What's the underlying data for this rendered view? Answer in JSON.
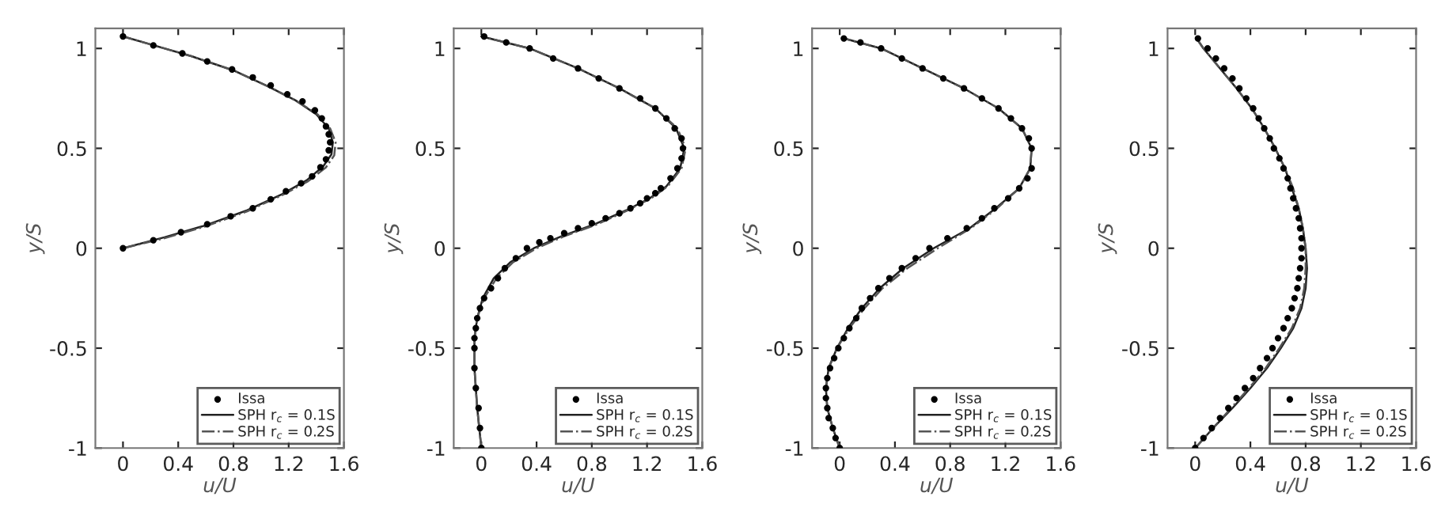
{
  "chart_data": [
    {
      "type": "line",
      "xlabel": "u/U",
      "ylabel": "y/S",
      "xlim": [
        -0.2,
        1.6
      ],
      "ylim": [
        -1,
        1.1
      ],
      "xticks": [
        0,
        0.4,
        0.8,
        1.2,
        1.6
      ],
      "yticks": [
        -1,
        -0.5,
        0,
        0.5,
        1
      ],
      "legend": "lower right",
      "grid": false,
      "series": [
        {
          "name": "Issa",
          "type": "scatter",
          "marker": "circle",
          "color": "#000000",
          "x": [
            0,
            0.22,
            0.42,
            0.61,
            0.78,
            0.94,
            1.07,
            1.18,
            1.29,
            1.37,
            1.43,
            1.47,
            1.49,
            1.5,
            1.49,
            1.47,
            1.44,
            1.39,
            1.3,
            1.19,
            1.07,
            0.94,
            0.79,
            0.61,
            0.43,
            0.22,
            0
          ],
          "values": [
            0,
            0.04,
            0.08,
            0.12,
            0.16,
            0.2,
            0.245,
            0.285,
            0.325,
            0.36,
            0.405,
            0.445,
            0.49,
            0.53,
            0.57,
            0.61,
            0.65,
            0.69,
            0.735,
            0.77,
            0.815,
            0.855,
            0.895,
            0.935,
            0.975,
            1.015,
            1.06
          ]
        },
        {
          "name": "SPH r$_{c}$ = 0.1S",
          "type": "line",
          "line_style": "solid",
          "color": "#222222",
          "x": [
            0,
            0.3,
            0.6,
            0.9,
            1.15,
            1.33,
            1.45,
            1.51,
            1.52,
            1.49,
            1.4,
            1.25,
            1.05,
            0.8,
            0.5,
            0.2,
            0
          ],
          "values": [
            0,
            0.055,
            0.115,
            0.19,
            0.27,
            0.34,
            0.41,
            0.47,
            0.53,
            0.6,
            0.67,
            0.74,
            0.81,
            0.89,
            0.96,
            1.02,
            1.06
          ]
        },
        {
          "name": "SPH r$_{c}$ = 0.2S",
          "type": "line",
          "line_style": "dashdot",
          "color": "#555555",
          "x": [
            0,
            0.3,
            0.6,
            0.9,
            1.15,
            1.34,
            1.47,
            1.53,
            1.54,
            1.5,
            1.41,
            1.25,
            1.05,
            0.8,
            0.5,
            0.2,
            0
          ],
          "values": [
            0,
            0.05,
            0.11,
            0.185,
            0.265,
            0.335,
            0.405,
            0.465,
            0.53,
            0.6,
            0.67,
            0.74,
            0.81,
            0.89,
            0.96,
            1.02,
            1.06
          ]
        }
      ]
    },
    {
      "type": "line",
      "xlabel": "u/U",
      "ylabel": "y/S",
      "xlim": [
        -0.2,
        1.6
      ],
      "ylim": [
        -1,
        1.1
      ],
      "xticks": [
        0,
        0.4,
        0.8,
        1.2,
        1.6
      ],
      "yticks": [
        -1,
        -0.5,
        0,
        0.5,
        1
      ],
      "legend": "lower right",
      "grid": false,
      "series": [
        {
          "name": "Issa",
          "type": "scatter",
          "marker": "circle",
          "color": "#000000",
          "x": [
            0,
            -0.01,
            -0.02,
            -0.04,
            -0.05,
            -0.05,
            -0.05,
            -0.04,
            -0.03,
            -0.01,
            0.02,
            0.07,
            0.12,
            0.17,
            0.25,
            0.33,
            0.42,
            0.5,
            0.6,
            0.7,
            0.8,
            0.9,
            1.0,
            1.08,
            1.15,
            1.2,
            1.26,
            1.3,
            1.37,
            1.42,
            1.45,
            1.46,
            1.45,
            1.4,
            1.34,
            1.26,
            1.15,
            1.0,
            0.85,
            0.7,
            0.52,
            0.35,
            0.18,
            0.02
          ],
          "values": [
            -1,
            -0.9,
            -0.8,
            -0.7,
            -0.6,
            -0.5,
            -0.45,
            -0.4,
            -0.35,
            -0.3,
            -0.25,
            -0.2,
            -0.15,
            -0.1,
            -0.05,
            0,
            0.03,
            0.05,
            0.075,
            0.1,
            0.125,
            0.15,
            0.175,
            0.2,
            0.225,
            0.25,
            0.275,
            0.3,
            0.35,
            0.4,
            0.45,
            0.5,
            0.55,
            0.6,
            0.65,
            0.7,
            0.75,
            0.8,
            0.85,
            0.9,
            0.95,
            1.0,
            1.03,
            1.06
          ]
        },
        {
          "name": "SPH r$_{c}$ = 0.1S",
          "type": "line",
          "line_style": "solid",
          "color": "#222222",
          "x": [
            0,
            -0.03,
            -0.05,
            -0.05,
            -0.03,
            0.01,
            0.09,
            0.21,
            0.38,
            0.58,
            0.82,
            1.05,
            1.22,
            1.34,
            1.44,
            1.47,
            1.41,
            1.26,
            1.0,
            0.7,
            0.35,
            0.0
          ],
          "values": [
            -1,
            -0.8,
            -0.6,
            -0.45,
            -0.35,
            -0.25,
            -0.15,
            -0.07,
            0,
            0.06,
            0.12,
            0.19,
            0.25,
            0.31,
            0.4,
            0.5,
            0.6,
            0.7,
            0.8,
            0.9,
            1.0,
            1.06
          ]
        },
        {
          "name": "SPH r$_{c}$ = 0.2S",
          "type": "line",
          "line_style": "dashdot",
          "color": "#555555",
          "x": [
            0,
            -0.03,
            -0.05,
            -0.05,
            -0.03,
            0.02,
            0.11,
            0.23,
            0.4,
            0.6,
            0.84,
            1.06,
            1.23,
            1.35,
            1.45,
            1.48,
            1.42,
            1.26,
            1.0,
            0.7,
            0.35,
            0.0
          ],
          "values": [
            -1,
            -0.8,
            -0.6,
            -0.45,
            -0.35,
            -0.25,
            -0.15,
            -0.07,
            0,
            0.06,
            0.12,
            0.19,
            0.25,
            0.31,
            0.4,
            0.5,
            0.6,
            0.7,
            0.8,
            0.9,
            1.0,
            1.06
          ]
        }
      ]
    },
    {
      "type": "line",
      "xlabel": "u/U",
      "ylabel": "y/S",
      "xlim": [
        -0.2,
        1.6
      ],
      "ylim": [
        -1,
        1.1
      ],
      "xticks": [
        0,
        0.4,
        0.8,
        1.2,
        1.6
      ],
      "yticks": [
        -1,
        -0.5,
        0,
        0.5,
        1
      ],
      "legend": "lower right",
      "grid": false,
      "series": [
        {
          "name": "Issa",
          "type": "scatter",
          "marker": "circle",
          "color": "#000000",
          "x": [
            0,
            -0.03,
            -0.05,
            -0.08,
            -0.09,
            -0.1,
            -0.1,
            -0.09,
            -0.07,
            -0.04,
            -0.01,
            0.03,
            0.07,
            0.12,
            0.16,
            0.22,
            0.28,
            0.36,
            0.45,
            0.55,
            0.65,
            0.78,
            0.92,
            1.03,
            1.12,
            1.22,
            1.3,
            1.36,
            1.39,
            1.39,
            1.37,
            1.32,
            1.24,
            1.15,
            1.03,
            0.9,
            0.75,
            0.6,
            0.45,
            0.3,
            0.15,
            0.03
          ],
          "values": [
            -1,
            -0.95,
            -0.9,
            -0.85,
            -0.8,
            -0.75,
            -0.7,
            -0.65,
            -0.6,
            -0.55,
            -0.5,
            -0.45,
            -0.4,
            -0.35,
            -0.3,
            -0.25,
            -0.2,
            -0.15,
            -0.1,
            -0.05,
            0,
            0.05,
            0.1,
            0.15,
            0.2,
            0.25,
            0.3,
            0.35,
            0.4,
            0.5,
            0.55,
            0.6,
            0.65,
            0.7,
            0.75,
            0.8,
            0.85,
            0.9,
            0.95,
            1.0,
            1.03,
            1.05
          ]
        },
        {
          "name": "SPH r$_{c}$ = 0.1S",
          "type": "line",
          "line_style": "solid",
          "color": "#222222",
          "x": [
            0,
            -0.05,
            -0.09,
            -0.1,
            -0.08,
            -0.02,
            0.06,
            0.16,
            0.29,
            0.46,
            0.68,
            0.94,
            1.13,
            1.3,
            1.38,
            1.39,
            1.32,
            1.15,
            0.9,
            0.6,
            0.3,
            0.03
          ],
          "values": [
            -1,
            -0.9,
            -0.8,
            -0.7,
            -0.6,
            -0.5,
            -0.4,
            -0.3,
            -0.2,
            -0.1,
            0,
            0.1,
            0.2,
            0.3,
            0.4,
            0.5,
            0.6,
            0.7,
            0.8,
            0.9,
            1.0,
            1.05
          ]
        },
        {
          "name": "SPH r$_{c}$ = 0.2S",
          "type": "line",
          "line_style": "dashdot",
          "color": "#555555",
          "x": [
            0,
            -0.05,
            -0.09,
            -0.1,
            -0.08,
            -0.02,
            0.07,
            0.18,
            0.31,
            0.49,
            0.71,
            0.95,
            1.14,
            1.3,
            1.38,
            1.39,
            1.32,
            1.15,
            0.9,
            0.6,
            0.3,
            0.03
          ],
          "values": [
            -1,
            -0.9,
            -0.8,
            -0.7,
            -0.6,
            -0.5,
            -0.4,
            -0.3,
            -0.2,
            -0.1,
            0,
            0.1,
            0.2,
            0.3,
            0.4,
            0.5,
            0.6,
            0.7,
            0.8,
            0.9,
            1.0,
            1.05
          ]
        }
      ]
    },
    {
      "type": "line",
      "xlabel": "u/U",
      "ylabel": "y/S",
      "xlim": [
        -0.2,
        1.6
      ],
      "ylim": [
        -1,
        1.1
      ],
      "xticks": [
        0,
        0.4,
        0.8,
        1.2,
        1.6
      ],
      "yticks": [
        -1,
        -0.5,
        0,
        0.5,
        1
      ],
      "legend": "lower right",
      "grid": false,
      "series": [
        {
          "name": "Issa",
          "type": "scatter",
          "marker": "circle",
          "color": "#000000",
          "x": [
            0,
            0.06,
            0.12,
            0.18,
            0.24,
            0.3,
            0.36,
            0.42,
            0.47,
            0.52,
            0.56,
            0.6,
            0.64,
            0.67,
            0.7,
            0.72,
            0.74,
            0.75,
            0.76,
            0.77,
            0.77,
            0.77,
            0.76,
            0.75,
            0.73,
            0.71,
            0.69,
            0.67,
            0.64,
            0.61,
            0.57,
            0.54,
            0.5,
            0.46,
            0.42,
            0.37,
            0.32,
            0.27,
            0.21,
            0.15,
            0.09,
            0.02
          ],
          "values": [
            -1,
            -0.95,
            -0.9,
            -0.85,
            -0.8,
            -0.75,
            -0.7,
            -0.65,
            -0.6,
            -0.55,
            -0.5,
            -0.45,
            -0.4,
            -0.35,
            -0.3,
            -0.25,
            -0.2,
            -0.15,
            -0.1,
            -0.05,
            0,
            0.05,
            0.1,
            0.15,
            0.2,
            0.25,
            0.3,
            0.35,
            0.4,
            0.45,
            0.5,
            0.55,
            0.6,
            0.65,
            0.7,
            0.75,
            0.8,
            0.85,
            0.9,
            0.95,
            1.0,
            1.05
          ]
        },
        {
          "name": "SPH r$_{c}$ = 0.1S",
          "line_style": "solid",
          "color": "#222222",
          "x": [
            0,
            0.13,
            0.27,
            0.4,
            0.52,
            0.62,
            0.71,
            0.77,
            0.8,
            0.81,
            0.8,
            0.78,
            0.75,
            0.7,
            0.65,
            0.58,
            0.5,
            0.41,
            0.3,
            0.18,
            0.06,
            0.01
          ],
          "values": [
            -1,
            -0.9,
            -0.8,
            -0.7,
            -0.6,
            -0.5,
            -0.4,
            -0.3,
            -0.2,
            -0.1,
            0,
            0.1,
            0.2,
            0.3,
            0.4,
            0.5,
            0.6,
            0.7,
            0.8,
            0.9,
            1.0,
            1.05
          ]
        },
        {
          "name": "SPH r$_{c}$ = 0.2S",
          "line_style": "dashdot",
          "color": "#555555",
          "x": [
            0,
            0.13,
            0.26,
            0.39,
            0.51,
            0.61,
            0.7,
            0.76,
            0.79,
            0.8,
            0.8,
            0.78,
            0.75,
            0.71,
            0.65,
            0.58,
            0.5,
            0.41,
            0.3,
            0.18,
            0.06,
            0.01
          ],
          "values": [
            -1,
            -0.9,
            -0.8,
            -0.7,
            -0.6,
            -0.5,
            -0.4,
            -0.3,
            -0.2,
            -0.1,
            0,
            0.1,
            0.2,
            0.3,
            0.4,
            0.5,
            0.6,
            0.7,
            0.8,
            0.9,
            1.0,
            1.05
          ]
        }
      ]
    }
  ]
}
